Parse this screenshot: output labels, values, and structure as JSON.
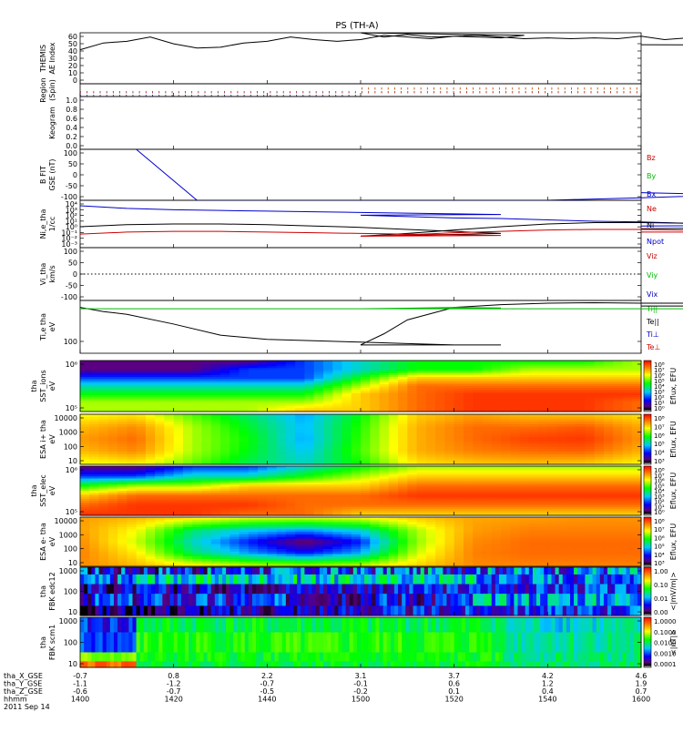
{
  "title": "PS (TH-A)",
  "chart_data": [
    {
      "type": "line",
      "ylabel": [
        "THEMIS",
        "AE Index"
      ],
      "yticks": [
        "60",
        "50",
        "40",
        "30",
        "20",
        "10",
        "0"
      ],
      "ylim": [
        0,
        60
      ],
      "x": [
        1400,
        1405,
        1410,
        1415,
        1420,
        1425,
        1430,
        1435,
        1440,
        1445,
        1450,
        1455,
        1460,
        1465,
        1470,
        1475,
        1480,
        1485,
        1490,
        1495,
        1500,
        1505,
        1510,
        1515,
        1520,
        1525,
        1530,
        1535,
        1540,
        1545,
        1550,
        1555,
        1560,
        1565,
        1570,
        1575,
        1580,
        1585,
        1590,
        1595,
        1600
      ],
      "series": [
        {
          "color": "#000000",
          "values": [
            40,
            48,
            50,
            55,
            47,
            42,
            43,
            48,
            50,
            55,
            52,
            50,
            52,
            57,
            55,
            53,
            56,
            55,
            54,
            57,
            60,
            55,
            58,
            55,
            56,
            57,
            55,
            53,
            54,
            53,
            54,
            53,
            56,
            52,
            54,
            49,
            52,
            50,
            48,
            45,
            46
          ]
        }
      ]
    },
    {
      "type": "scatter",
      "ylabel": [
        "Region",
        "(Spin)"
      ],
      "rows": [
        {
          "name": "upper",
          "color": "#cc5500",
          "x_start": 1490,
          "x_end": 1600
        },
        {
          "name": "middle",
          "color": "#aa3333",
          "x_start": 1400,
          "x_end": 1600
        },
        {
          "name": "lower",
          "color": "#3333aa",
          "x_start": 1400,
          "x_end": 1490
        }
      ]
    },
    {
      "type": "line",
      "ylabel": [
        "Keogram"
      ],
      "yticks": [
        "1.0",
        "0.8",
        "0.6",
        "0.4",
        "0.2",
        "0.0"
      ],
      "ylim": [
        0,
        1.0
      ],
      "series": []
    },
    {
      "type": "line",
      "ylabel": [
        "B FIT",
        "GSE (nT)"
      ],
      "yticks": [
        "100",
        "50",
        "0",
        "-50",
        "-100"
      ],
      "ylim": [
        -100,
        100
      ],
      "x": [
        1400,
        1412,
        1425,
        1500,
        1520,
        1540,
        1560,
        1580,
        1600
      ],
      "legend": [
        {
          "label": "Bz",
          "color": "#cc0000"
        },
        {
          "label": "By",
          "color": "#00bb00"
        },
        {
          "label": "Bx",
          "color": "#0000cc"
        }
      ],
      "series": [
        {
          "name": "Bx",
          "color": "#0000cc",
          "values": [
            null,
            100,
            -100,
            -110,
            -110,
            -100,
            -90,
            -78,
            -70
          ]
        }
      ]
    },
    {
      "type": "line",
      "ylabel": [
        "Ni,e_tha",
        "1/cc"
      ],
      "yticks": [
        "10⁴",
        "10³",
        "10²",
        "10¹",
        "10⁰",
        "10⁻¹",
        "10⁻²",
        "10⁻³"
      ],
      "ylim": [
        -3,
        4
      ],
      "yscale": "log",
      "legend": [
        {
          "label": "Ne",
          "color": "#cc0000"
        },
        {
          "label": "Ni",
          "color": "#000000"
        },
        {
          "label": "Npot",
          "color": "#0000cc"
        }
      ],
      "x": [
        1400,
        1410,
        1420,
        1430,
        1440,
        1450,
        1460,
        1470,
        1480,
        1490,
        1500,
        1510,
        1520,
        1530,
        1540,
        1550,
        1560,
        1570,
        1580,
        1590,
        1600
      ],
      "series": [
        {
          "name": "Npot",
          "color": "#0000cc",
          "values": [
            3.2,
            2.8,
            2.6,
            2.5,
            2.4,
            2.3,
            2.2,
            2.1,
            2.0,
            1.9,
            1.8,
            1.6,
            1.4,
            1.3,
            1.1,
            0.9,
            0.8,
            0.6,
            0.5,
            0.3,
            0.2
          ]
        },
        {
          "name": "Ni",
          "color": "#000000",
          "values": [
            0.1,
            0.4,
            0.5,
            0.5,
            0.4,
            0.2,
            0.0,
            -0.3,
            -0.6,
            -0.9,
            -1.3,
            -0.9,
            -0.4,
            0.1,
            0.5,
            0.7,
            0.7,
            0.6,
            0.3,
            0.0,
            -0.2
          ]
        },
        {
          "name": "Ne",
          "color": "#cc0000",
          "values": [
            -1.0,
            -0.7,
            -0.6,
            -0.6,
            -0.7,
            -0.8,
            -0.9,
            -1.0,
            -1.1,
            -1.2,
            -1.3,
            -1.1,
            -0.8,
            -0.6,
            -0.4,
            -0.3,
            -0.3,
            -0.4,
            -0.6,
            -0.7,
            -0.7
          ]
        }
      ]
    },
    {
      "type": "line",
      "ylabel": [
        "Vi_tha",
        "km/s"
      ],
      "yticks": [
        "100",
        "50",
        "0",
        "-50",
        "-100"
      ],
      "ylim": [
        -130,
        130
      ],
      "legend": [
        {
          "label": "Viz",
          "color": "#cc0000"
        },
        {
          "label": "Viy",
          "color": "#00bb00"
        },
        {
          "label": "Vix",
          "color": "#0000cc"
        }
      ],
      "series": [
        {
          "name": "zero",
          "color": "#000000",
          "dotted": true,
          "values": [
            0,
            0
          ]
        }
      ],
      "x": [
        1400,
        1600
      ]
    },
    {
      "type": "line",
      "ylabel": [
        "Ti,e tha",
        "eV"
      ],
      "yticks": [
        "100"
      ],
      "yscale": "log",
      "ylim": [
        1.7,
        3.6
      ],
      "legend": [
        {
          "label": "Ti||",
          "color": "#00bb00"
        },
        {
          "label": "Te||",
          "color": "#000000"
        },
        {
          "label": "Ti⊥",
          "color": "#0000cc"
        },
        {
          "label": "Te⊥",
          "color": "#cc0000"
        }
      ],
      "x": [
        1400,
        1405,
        1410,
        1420,
        1430,
        1440,
        1450,
        1460,
        1470,
        1480,
        1490,
        1500,
        1505,
        1510,
        1520,
        1530,
        1540,
        1550,
        1560,
        1570,
        1580,
        1590,
        1600
      ],
      "series": [
        {
          "name": "Te||",
          "color": "#000000",
          "values": [
            3.35,
            3.2,
            3.1,
            2.75,
            2.35,
            2.2,
            2.15,
            2.1,
            2.05,
            2.0,
            2.0,
            2.0,
            2.4,
            2.9,
            3.35,
            3.45,
            3.5,
            3.52,
            3.5,
            3.5,
            3.48,
            3.4,
            3.4
          ]
        },
        {
          "name": "Ti||",
          "color": "#00bb00",
          "values": [
            3.3,
            3.3,
            3.3,
            3.3,
            3.3,
            3.3,
            3.3,
            3.3,
            3.32,
            3.35,
            3.33,
            3.3,
            3.3,
            3.3,
            3.3,
            3.3,
            3.3,
            3.3,
            3.3,
            3.3,
            3.3,
            3.3,
            3.3
          ]
        }
      ]
    },
    {
      "type": "heatmap",
      "ylabel": [
        "tha",
        "SST_ions",
        "eV"
      ],
      "yticks": [
        "10⁶",
        "10⁵"
      ],
      "colorbar_label": "Eflux, EFU",
      "colorbar_ticks": [
        "10⁸",
        "10⁷",
        "10⁶",
        "10⁵",
        "10⁴",
        "10³",
        "10²",
        "10¹",
        "10⁰"
      ],
      "x": [
        1400,
        1420,
        1440,
        1460,
        1480,
        1500,
        1520,
        1540,
        1560,
        1580,
        1600
      ],
      "rows": [
        [
          7,
          7,
          7,
          7,
          6,
          5,
          4,
          4,
          4,
          4,
          3
        ],
        [
          7,
          7,
          7,
          6,
          6,
          5,
          4,
          4,
          3,
          3,
          3
        ],
        [
          6,
          6,
          6,
          6,
          6,
          4,
          2,
          2,
          2,
          2,
          2
        ],
        [
          5,
          5,
          5,
          5,
          5,
          3,
          1,
          1,
          1,
          1,
          1
        ],
        [
          4,
          4,
          4,
          4,
          4,
          2,
          1,
          0.5,
          0.5,
          0.5,
          0.5
        ],
        [
          3,
          3,
          3,
          3,
          3,
          2,
          1,
          0.5,
          0.5,
          0.5,
          1
        ],
        [
          3,
          3,
          3,
          3,
          2,
          2,
          1,
          0.5,
          0.5,
          0.5,
          1
        ]
      ]
    },
    {
      "type": "heatmap",
      "ylabel": [
        "ESA i+ tha",
        "eV"
      ],
      "yticks": [
        "10000",
        "1000",
        "100",
        "10"
      ],
      "colorbar_label": "Eflux, EFU",
      "colorbar_ticks": [
        "10⁸",
        "10⁷",
        "10⁶",
        "10⁵",
        "10⁴",
        "10³"
      ],
      "x": [
        1400,
        1420,
        1440,
        1460,
        1480,
        1500,
        1520,
        1540,
        1560,
        1580,
        1600
      ],
      "rows": [
        [
          2.5,
          2.2,
          3.5,
          4.5,
          5.5,
          4,
          2,
          1.5,
          1.8,
          1.8,
          2.2
        ],
        [
          1.8,
          1.3,
          3,
          4.2,
          5.4,
          3.8,
          1.7,
          1,
          1,
          0.8,
          1.6
        ],
        [
          1.5,
          1,
          3,
          4,
          5.5,
          3.7,
          1.7,
          1,
          0.6,
          0.5,
          1.4
        ],
        [
          1.8,
          1.3,
          3,
          4.1,
          5.3,
          3.6,
          1.7,
          1.2,
          1,
          0.9,
          1.7
        ],
        [
          2.6,
          2.3,
          3.4,
          4.4,
          5,
          3.9,
          2.2,
          1.9,
          1.8,
          1.9,
          2.4
        ]
      ]
    },
    {
      "type": "heatmap",
      "ylabel": [
        "tha",
        "SST_elec",
        "eV"
      ],
      "yticks": [
        "10⁶",
        "10⁵"
      ],
      "colorbar_label": "Eflux, EFU",
      "colorbar_ticks": [
        "10⁸",
        "10⁷",
        "10⁶",
        "10⁵",
        "10⁴",
        "10³",
        "10²",
        "10¹",
        "10⁰"
      ],
      "x": [
        1400,
        1420,
        1440,
        1460,
        1480,
        1500,
        1520,
        1540,
        1560,
        1580,
        1600
      ],
      "rows": [
        [
          7,
          7,
          6,
          6,
          5,
          4,
          3,
          3,
          3,
          3,
          3
        ],
        [
          6,
          6,
          5,
          5,
          4,
          3,
          2,
          2,
          2,
          2,
          2
        ],
        [
          4,
          3,
          3,
          2,
          2,
          2,
          1,
          1,
          1,
          1,
          1
        ],
        [
          2,
          1,
          1,
          1,
          1,
          1,
          0.5,
          0.5,
          0.5,
          0.5,
          0.5
        ],
        [
          1,
          0.5,
          0.5,
          0.5,
          1,
          1,
          1,
          1,
          1,
          1,
          1
        ],
        [
          0.5,
          0.5,
          0.5,
          1,
          1,
          2,
          2,
          2,
          2,
          2,
          2
        ]
      ]
    },
    {
      "type": "heatmap",
      "ylabel": [
        "ESA e- tha",
        "eV"
      ],
      "yticks": [
        "10000",
        "1000",
        "100",
        "10"
      ],
      "colorbar_label": "Eflux, EFU",
      "colorbar_ticks": [
        "10⁸",
        "10⁷",
        "10⁶",
        "10⁵",
        "10⁴",
        "10³"
      ],
      "x": [
        1400,
        1420,
        1440,
        1460,
        1480,
        1500,
        1520,
        1540,
        1560,
        1580,
        1600
      ],
      "rows": [
        [
          1.5,
          1.8,
          2.4,
          2.8,
          2.9,
          2.7,
          2,
          1.6,
          1.5,
          1.4,
          1.4
        ],
        [
          1.5,
          2.5,
          4.5,
          5.2,
          5.5,
          5,
          3,
          1.5,
          1.2,
          1.2,
          1.2
        ],
        [
          1.3,
          2.8,
          5,
          6.2,
          7.2,
          6.2,
          3.2,
          1.3,
          1,
          1,
          1
        ],
        [
          1.2,
          2.3,
          4.5,
          5.5,
          6.2,
          5.4,
          2.8,
          1.2,
          1,
          1,
          1
        ],
        [
          1.3,
          1.8,
          2.5,
          3,
          3.2,
          3,
          2.1,
          1.3,
          1.2,
          1.2,
          1.2
        ]
      ]
    },
    {
      "type": "heatmap",
      "ylabel": [
        "tha",
        "FBK edc12"
      ],
      "yticks": [
        "1000",
        "100",
        "10"
      ],
      "colorbar_label": "<|mV/m|>",
      "colorbar_ticks": [
        "1.00",
        "0.10",
        "0.01",
        "0.00"
      ]
    },
    {
      "type": "heatmap",
      "ylabel": [
        "tha",
        "FBK scm1"
      ],
      "yticks": [
        "1000",
        "100",
        "10"
      ],
      "colorbar_label": "<|nT|>",
      "colorbar_ticks": [
        "1.0000",
        "0.1000",
        "0.0100",
        "0.0010",
        "0.0001"
      ]
    }
  ],
  "footer": {
    "row_labels": [
      "tha_X_GSE",
      "tha_Y_GSE",
      "tha_Z_GSE",
      "hhmm",
      "2011 Sep 14"
    ],
    "columns": [
      {
        "x": 1400,
        "values": [
          "-0.7",
          "-1.1",
          "-0.6",
          "1400"
        ]
      },
      {
        "x": 1420,
        "values": [
          "0.8",
          "-1.2",
          "-0.7",
          "1420"
        ]
      },
      {
        "x": 1440,
        "values": [
          "2.2",
          "-0.7",
          "-0.5",
          "1440"
        ]
      },
      {
        "x": 1500,
        "values": [
          "3.1",
          "-0.1",
          "-0.2",
          "1500"
        ]
      },
      {
        "x": 1520,
        "values": [
          "3.7",
          "0.6",
          "0.1",
          "1520"
        ]
      },
      {
        "x": 1540,
        "values": [
          "4.2",
          "1.2",
          "0.4",
          "1540"
        ]
      },
      {
        "x": 1600,
        "values": [
          "4.6",
          "1.9",
          "0.7",
          "1600"
        ]
      }
    ]
  }
}
